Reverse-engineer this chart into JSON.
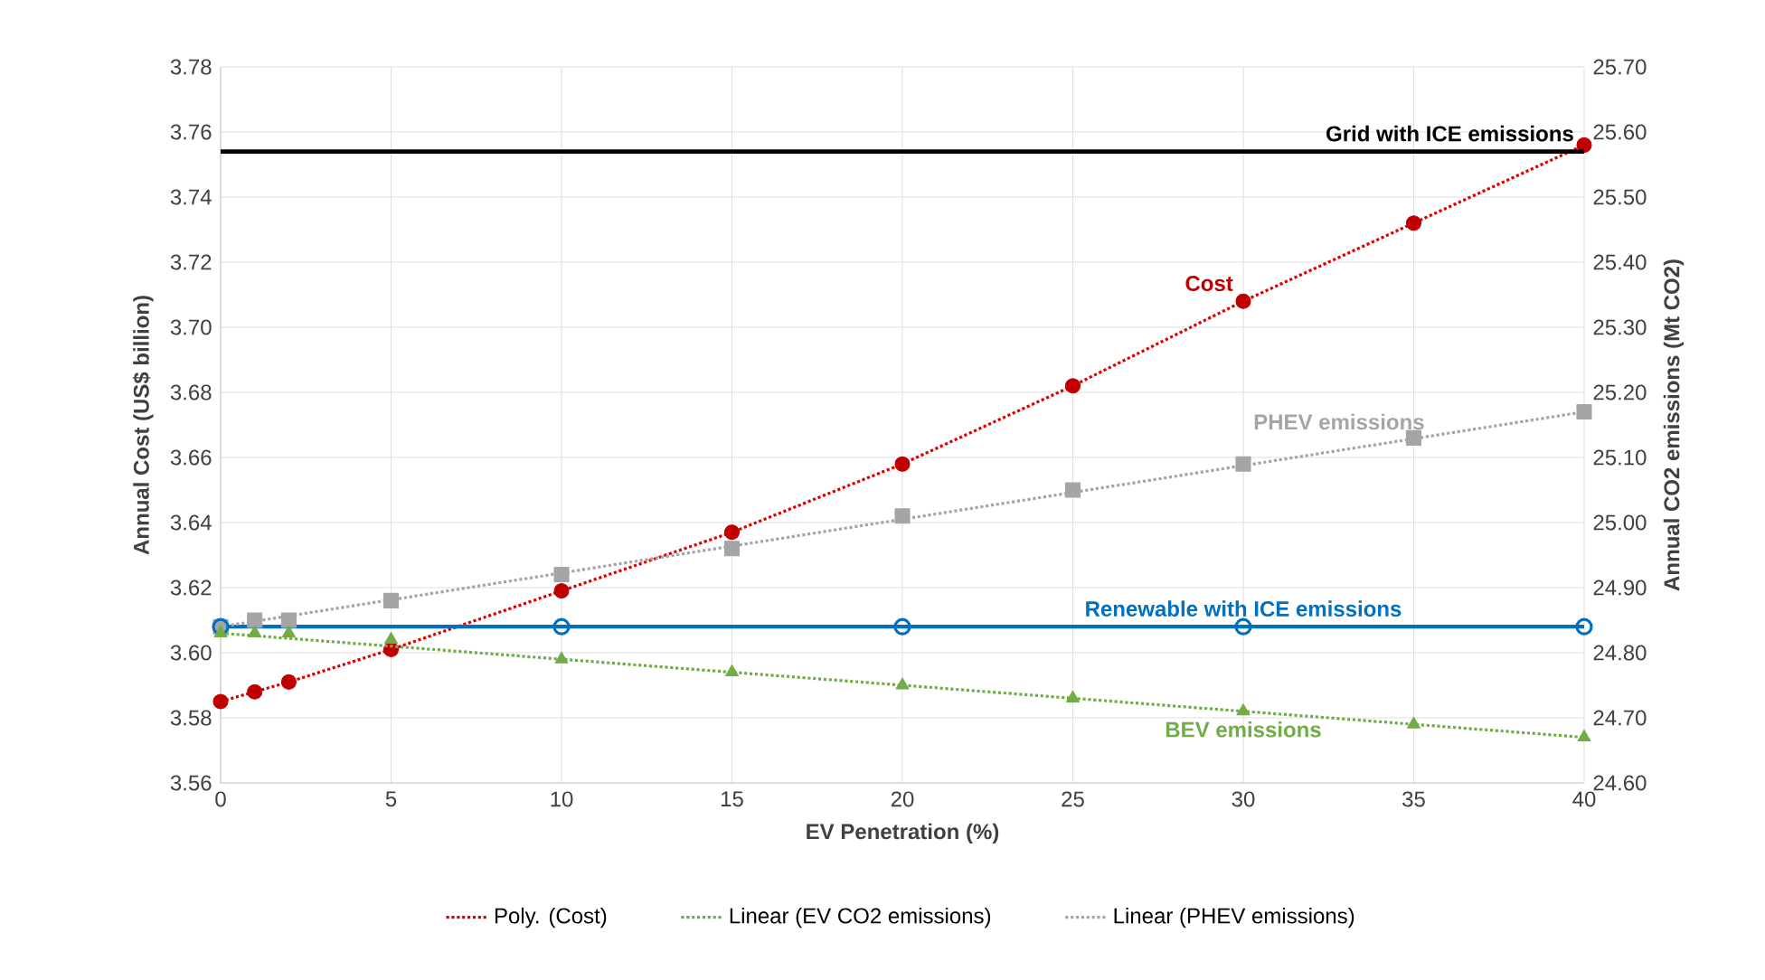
{
  "chart_data": {
    "type": "line",
    "xlabel": "EV Penetration (%)",
    "ylabel": "Annual Cost (US$ billion)",
    "y2label": "Annual CO2 emissions (Mt CO2)",
    "xlim": [
      0,
      40
    ],
    "xticks": [
      0,
      5,
      10,
      15,
      20,
      25,
      30,
      35,
      40
    ],
    "ylim": [
      3.56,
      3.78
    ],
    "yticks": [
      {
        "value": 3.56,
        "label": "3.56"
      },
      {
        "value": 3.58,
        "label": "3.58"
      },
      {
        "value": 3.6,
        "label": "3.60"
      },
      {
        "value": 3.62,
        "label": "3.62"
      },
      {
        "value": 3.64,
        "label": "3.64"
      },
      {
        "value": 3.66,
        "label": "3.66"
      },
      {
        "value": 3.68,
        "label": "3.68"
      },
      {
        "value": 3.7,
        "label": "3.70"
      },
      {
        "value": 3.72,
        "label": "3.72"
      },
      {
        "value": 3.74,
        "label": "3.74"
      },
      {
        "value": 3.76,
        "label": "3.76"
      },
      {
        "value": 3.78,
        "label": "3.78"
      }
    ],
    "y2lim": [
      24.6,
      25.7
    ],
    "y2ticks": [
      {
        "value": 24.6,
        "label": "24.60"
      },
      {
        "value": 24.7,
        "label": "24.70"
      },
      {
        "value": 24.8,
        "label": "24.80"
      },
      {
        "value": 24.9,
        "label": "24.90"
      },
      {
        "value": 25.0,
        "label": "25.00"
      },
      {
        "value": 25.1,
        "label": "25.10"
      },
      {
        "value": 25.2,
        "label": "25.20"
      },
      {
        "value": 25.3,
        "label": "25.30"
      },
      {
        "value": 25.4,
        "label": "25.40"
      },
      {
        "value": 25.5,
        "label": "25.50"
      },
      {
        "value": 25.6,
        "label": "25.60"
      },
      {
        "value": 25.7,
        "label": "25.70"
      }
    ],
    "grid": true,
    "legend": "bottom",
    "ref_lines": [
      {
        "axis": "y2",
        "value": 25.57,
        "label": "Grid with ICE emissions",
        "color": "#000000",
        "line_style": "solid"
      }
    ],
    "series": [
      {
        "name": "Cost",
        "type": "scatter",
        "marker": "circle",
        "color": "#c00000",
        "x": [
          0,
          1,
          2,
          5,
          10,
          15,
          20,
          25,
          30,
          35,
          40
        ],
        "values": [
          3.585,
          3.588,
          3.591,
          3.601,
          3.619,
          3.637,
          3.658,
          3.682,
          3.708,
          3.732,
          3.756
        ]
      },
      {
        "name": "PHEV emissions",
        "type": "scatter",
        "axis": "y2",
        "marker": "square",
        "color": "#a5a5a5",
        "x": [
          0,
          1,
          2,
          5,
          10,
          15,
          20,
          25,
          30,
          35,
          40
        ],
        "values": [
          24.84,
          24.85,
          24.85,
          24.88,
          24.92,
          24.96,
          25.01,
          25.05,
          25.09,
          25.13,
          25.17
        ]
      },
      {
        "name": "Renewable with ICE emissions",
        "axis": "y2",
        "marker": "circle",
        "line_style": "solid",
        "color": "#0070c0",
        "x": [
          0,
          10,
          20,
          30,
          40
        ],
        "values": [
          24.84,
          24.84,
          24.84,
          24.84,
          24.84
        ]
      },
      {
        "name": "BEV emissions",
        "type": "scatter",
        "axis": "y2",
        "marker": "triangle",
        "color": "#70ad47",
        "x": [
          0,
          1,
          2,
          5,
          10,
          15,
          20,
          25,
          30,
          35,
          40
        ],
        "values": [
          24.83,
          24.83,
          24.83,
          24.82,
          24.79,
          24.77,
          24.75,
          24.73,
          24.71,
          24.69,
          24.67
        ]
      },
      {
        "name": "Poly. (Cost)",
        "line_style": "dotted",
        "color": "#e00000",
        "x": [
          0,
          1,
          2,
          5,
          10,
          15,
          20,
          25,
          30,
          35,
          40
        ],
        "values": [
          3.585,
          3.588,
          3.591,
          3.601,
          3.619,
          3.637,
          3.658,
          3.682,
          3.708,
          3.732,
          3.756
        ]
      },
      {
        "name": "Linear (EV CO2 emissions)",
        "axis": "y2",
        "line_style": "dotted",
        "color": "#70ad47",
        "x": [
          0,
          40
        ],
        "values": [
          24.83,
          24.67
        ]
      },
      {
        "name": "Linear (PHEV emissions)",
        "axis": "y2",
        "line_style": "dotted",
        "color": "#a5a5a5",
        "x": [
          0,
          40
        ],
        "values": [
          24.84,
          25.17
        ]
      }
    ]
  }
}
